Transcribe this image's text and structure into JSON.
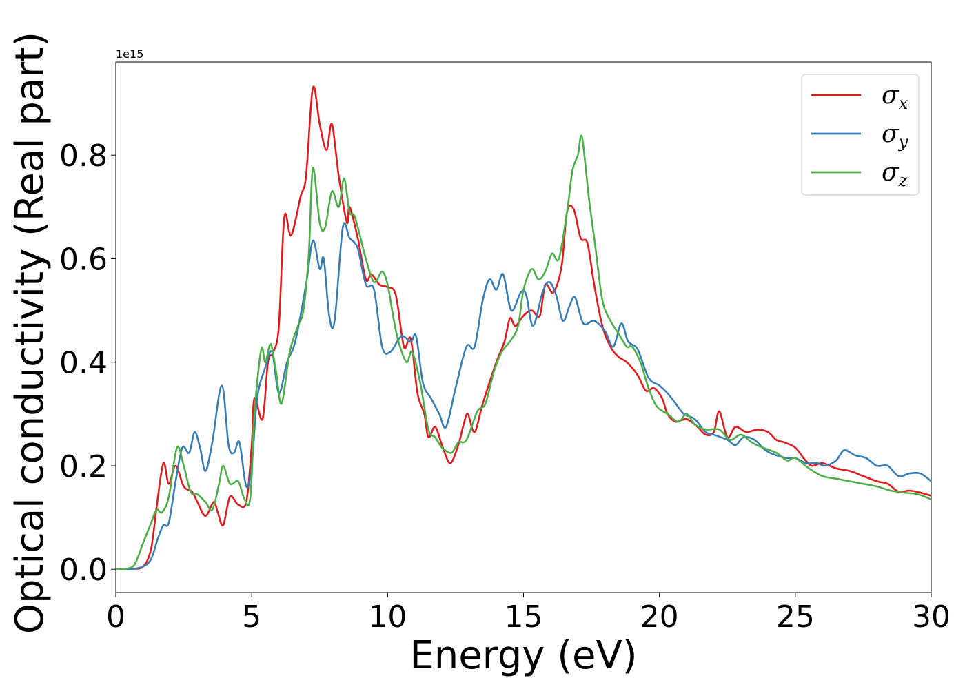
{
  "chart_data": {
    "type": "line",
    "title": "",
    "xlabel": "Energy (eV)",
    "ylabel": "Optical conductivity (Real part)",
    "y_offset_text": "1e15",
    "xlim": [
      0,
      30
    ],
    "ylim": [
      -0.045,
      0.98
    ],
    "x_ticks": [
      0,
      5,
      10,
      15,
      20,
      25,
      30
    ],
    "x_tick_labels": [
      "0",
      "5",
      "10",
      "15",
      "20",
      "25",
      "30"
    ],
    "y_ticks": [
      0.0,
      0.2,
      0.4,
      0.6,
      0.8
    ],
    "y_tick_labels": [
      "0.0",
      "0.2",
      "0.4",
      "0.6",
      "0.8"
    ],
    "grid": false,
    "legend_position": "top-right",
    "series": [
      {
        "name": "σx",
        "symbol": "σ",
        "subscript": "x",
        "color": "#e41a1c",
        "points": [
          [
            0,
            0
          ],
          [
            0.5,
            0.001
          ],
          [
            1.0,
            0.005
          ],
          [
            1.3,
            0.04
          ],
          [
            1.5,
            0.12
          ],
          [
            1.75,
            0.205
          ],
          [
            1.95,
            0.165
          ],
          [
            2.2,
            0.2
          ],
          [
            2.5,
            0.16
          ],
          [
            2.8,
            0.15
          ],
          [
            3.0,
            0.13
          ],
          [
            3.3,
            0.103
          ],
          [
            3.6,
            0.13
          ],
          [
            3.75,
            0.11
          ],
          [
            3.95,
            0.085
          ],
          [
            4.2,
            0.14
          ],
          [
            4.5,
            0.125
          ],
          [
            4.8,
            0.13
          ],
          [
            5.0,
            0.24
          ],
          [
            5.1,
            0.33
          ],
          [
            5.4,
            0.29
          ],
          [
            5.6,
            0.4
          ],
          [
            5.8,
            0.42
          ],
          [
            6.0,
            0.47
          ],
          [
            6.2,
            0.68
          ],
          [
            6.45,
            0.645
          ],
          [
            6.8,
            0.72
          ],
          [
            7.0,
            0.76
          ],
          [
            7.25,
            0.93
          ],
          [
            7.5,
            0.86
          ],
          [
            7.75,
            0.81
          ],
          [
            7.95,
            0.86
          ],
          [
            8.2,
            0.76
          ],
          [
            8.5,
            0.67
          ],
          [
            8.6,
            0.7
          ],
          [
            8.9,
            0.64
          ],
          [
            9.2,
            0.56
          ],
          [
            9.4,
            0.57
          ],
          [
            9.7,
            0.55
          ],
          [
            10.0,
            0.545
          ],
          [
            10.3,
            0.53
          ],
          [
            10.6,
            0.43
          ],
          [
            10.85,
            0.445
          ],
          [
            11.1,
            0.34
          ],
          [
            11.35,
            0.3
          ],
          [
            11.5,
            0.255
          ],
          [
            11.75,
            0.275
          ],
          [
            12.0,
            0.24
          ],
          [
            12.3,
            0.205
          ],
          [
            12.6,
            0.24
          ],
          [
            12.8,
            0.28
          ],
          [
            12.95,
            0.3
          ],
          [
            13.2,
            0.265
          ],
          [
            13.5,
            0.32
          ],
          [
            14.0,
            0.4
          ],
          [
            14.3,
            0.44
          ],
          [
            14.5,
            0.485
          ],
          [
            14.7,
            0.47
          ],
          [
            15.0,
            0.49
          ],
          [
            15.3,
            0.5
          ],
          [
            15.6,
            0.49
          ],
          [
            15.8,
            0.55
          ],
          [
            16.1,
            0.535
          ],
          [
            16.4,
            0.585
          ],
          [
            16.6,
            0.69
          ],
          [
            16.85,
            0.695
          ],
          [
            17.1,
            0.64
          ],
          [
            17.35,
            0.63
          ],
          [
            17.6,
            0.55
          ],
          [
            17.9,
            0.47
          ],
          [
            18.2,
            0.43
          ],
          [
            18.5,
            0.41
          ],
          [
            18.8,
            0.4
          ],
          [
            19.2,
            0.375
          ],
          [
            19.5,
            0.345
          ],
          [
            19.8,
            0.35
          ],
          [
            20.1,
            0.33
          ],
          [
            20.3,
            0.3
          ],
          [
            20.6,
            0.285
          ],
          [
            21.0,
            0.29
          ],
          [
            21.4,
            0.275
          ],
          [
            21.7,
            0.26
          ],
          [
            22.0,
            0.265
          ],
          [
            22.2,
            0.305
          ],
          [
            22.5,
            0.255
          ],
          [
            22.8,
            0.275
          ],
          [
            23.2,
            0.265
          ],
          [
            23.6,
            0.27
          ],
          [
            24.0,
            0.265
          ],
          [
            24.3,
            0.25
          ],
          [
            24.6,
            0.245
          ],
          [
            25.0,
            0.235
          ],
          [
            25.3,
            0.215
          ],
          [
            25.6,
            0.2
          ],
          [
            26.0,
            0.205
          ],
          [
            26.5,
            0.195
          ],
          [
            27.0,
            0.19
          ],
          [
            27.5,
            0.18
          ],
          [
            28.0,
            0.17
          ],
          [
            28.4,
            0.165
          ],
          [
            28.8,
            0.15
          ],
          [
            29.2,
            0.152
          ],
          [
            29.6,
            0.148
          ],
          [
            30.0,
            0.142
          ]
        ]
      },
      {
        "name": "σy",
        "symbol": "σ",
        "subscript": "y",
        "color": "#377eb8",
        "points": [
          [
            0,
            0
          ],
          [
            0.5,
            0.0
          ],
          [
            1.0,
            0.005
          ],
          [
            1.3,
            0.02
          ],
          [
            1.55,
            0.06
          ],
          [
            1.75,
            0.085
          ],
          [
            1.95,
            0.09
          ],
          [
            2.2,
            0.17
          ],
          [
            2.45,
            0.235
          ],
          [
            2.7,
            0.225
          ],
          [
            2.9,
            0.265
          ],
          [
            3.1,
            0.235
          ],
          [
            3.3,
            0.19
          ],
          [
            3.55,
            0.245
          ],
          [
            3.9,
            0.355
          ],
          [
            4.15,
            0.24
          ],
          [
            4.35,
            0.225
          ],
          [
            4.55,
            0.245
          ],
          [
            4.8,
            0.16
          ],
          [
            5.0,
            0.2
          ],
          [
            5.2,
            0.33
          ],
          [
            5.5,
            0.39
          ],
          [
            5.75,
            0.42
          ],
          [
            6.0,
            0.34
          ],
          [
            6.3,
            0.4
          ],
          [
            6.6,
            0.44
          ],
          [
            7.0,
            0.55
          ],
          [
            7.25,
            0.635
          ],
          [
            7.5,
            0.58
          ],
          [
            7.65,
            0.6
          ],
          [
            7.85,
            0.49
          ],
          [
            8.05,
            0.48
          ],
          [
            8.35,
            0.66
          ],
          [
            8.6,
            0.64
          ],
          [
            8.9,
            0.62
          ],
          [
            9.2,
            0.55
          ],
          [
            9.5,
            0.54
          ],
          [
            9.8,
            0.43
          ],
          [
            10.1,
            0.42
          ],
          [
            10.5,
            0.45
          ],
          [
            10.85,
            0.44
          ],
          [
            11.05,
            0.45
          ],
          [
            11.3,
            0.36
          ],
          [
            11.6,
            0.33
          ],
          [
            11.9,
            0.3
          ],
          [
            12.15,
            0.275
          ],
          [
            12.5,
            0.35
          ],
          [
            12.9,
            0.43
          ],
          [
            13.2,
            0.43
          ],
          [
            13.5,
            0.52
          ],
          [
            13.75,
            0.56
          ],
          [
            14.0,
            0.54
          ],
          [
            14.25,
            0.57
          ],
          [
            14.55,
            0.5
          ],
          [
            14.9,
            0.535
          ],
          [
            15.1,
            0.53
          ],
          [
            15.35,
            0.47
          ],
          [
            15.7,
            0.535
          ],
          [
            15.95,
            0.555
          ],
          [
            16.2,
            0.53
          ],
          [
            16.45,
            0.48
          ],
          [
            16.7,
            0.51
          ],
          [
            16.9,
            0.525
          ],
          [
            17.2,
            0.475
          ],
          [
            17.6,
            0.48
          ],
          [
            18.0,
            0.46
          ],
          [
            18.3,
            0.43
          ],
          [
            18.6,
            0.475
          ],
          [
            18.85,
            0.44
          ],
          [
            19.2,
            0.425
          ],
          [
            19.6,
            0.37
          ],
          [
            20.0,
            0.355
          ],
          [
            20.3,
            0.34
          ],
          [
            20.6,
            0.32
          ],
          [
            20.9,
            0.3
          ],
          [
            21.3,
            0.29
          ],
          [
            21.7,
            0.265
          ],
          [
            22.0,
            0.26
          ],
          [
            22.5,
            0.25
          ],
          [
            22.8,
            0.24
          ],
          [
            23.1,
            0.255
          ],
          [
            23.5,
            0.25
          ],
          [
            23.9,
            0.23
          ],
          [
            24.3,
            0.22
          ],
          [
            24.7,
            0.215
          ],
          [
            25.0,
            0.215
          ],
          [
            25.4,
            0.205
          ],
          [
            25.8,
            0.205
          ],
          [
            26.1,
            0.2
          ],
          [
            26.5,
            0.21
          ],
          [
            26.8,
            0.23
          ],
          [
            27.2,
            0.22
          ],
          [
            27.6,
            0.215
          ],
          [
            28.0,
            0.2
          ],
          [
            28.4,
            0.2
          ],
          [
            28.8,
            0.18
          ],
          [
            29.2,
            0.185
          ],
          [
            29.6,
            0.185
          ],
          [
            30.0,
            0.17
          ]
        ]
      },
      {
        "name": "σz",
        "symbol": "σ",
        "subscript": "z",
        "color": "#4daf4a",
        "points": [
          [
            0,
            0
          ],
          [
            0.4,
            0.001
          ],
          [
            0.7,
            0.01
          ],
          [
            1.0,
            0.05
          ],
          [
            1.3,
            0.09
          ],
          [
            1.5,
            0.115
          ],
          [
            1.7,
            0.11
          ],
          [
            1.95,
            0.14
          ],
          [
            2.25,
            0.235
          ],
          [
            2.5,
            0.2
          ],
          [
            2.75,
            0.15
          ],
          [
            3.0,
            0.145
          ],
          [
            3.3,
            0.13
          ],
          [
            3.55,
            0.115
          ],
          [
            3.8,
            0.165
          ],
          [
            3.95,
            0.2
          ],
          [
            4.2,
            0.165
          ],
          [
            4.5,
            0.17
          ],
          [
            4.7,
            0.14
          ],
          [
            4.9,
            0.125
          ],
          [
            5.0,
            0.18
          ],
          [
            5.1,
            0.3
          ],
          [
            5.35,
            0.425
          ],
          [
            5.5,
            0.4
          ],
          [
            5.7,
            0.435
          ],
          [
            5.9,
            0.38
          ],
          [
            6.1,
            0.32
          ],
          [
            6.4,
            0.42
          ],
          [
            6.7,
            0.47
          ],
          [
            6.9,
            0.5
          ],
          [
            7.1,
            0.61
          ],
          [
            7.25,
            0.775
          ],
          [
            7.5,
            0.67
          ],
          [
            7.7,
            0.66
          ],
          [
            7.95,
            0.73
          ],
          [
            8.2,
            0.7
          ],
          [
            8.4,
            0.755
          ],
          [
            8.6,
            0.69
          ],
          [
            8.8,
            0.68
          ],
          [
            9.2,
            0.6
          ],
          [
            9.5,
            0.555
          ],
          [
            9.8,
            0.575
          ],
          [
            10.0,
            0.55
          ],
          [
            10.2,
            0.49
          ],
          [
            10.4,
            0.44
          ],
          [
            10.7,
            0.4
          ],
          [
            10.9,
            0.42
          ],
          [
            11.2,
            0.36
          ],
          [
            11.5,
            0.27
          ],
          [
            11.75,
            0.255
          ],
          [
            12.0,
            0.235
          ],
          [
            12.35,
            0.225
          ],
          [
            12.6,
            0.245
          ],
          [
            12.9,
            0.25
          ],
          [
            13.3,
            0.305
          ],
          [
            13.6,
            0.32
          ],
          [
            13.9,
            0.38
          ],
          [
            14.2,
            0.42
          ],
          [
            14.5,
            0.44
          ],
          [
            14.8,
            0.47
          ],
          [
            15.0,
            0.54
          ],
          [
            15.3,
            0.58
          ],
          [
            15.55,
            0.56
          ],
          [
            15.8,
            0.575
          ],
          [
            16.05,
            0.61
          ],
          [
            16.3,
            0.6
          ],
          [
            16.6,
            0.69
          ],
          [
            16.8,
            0.77
          ],
          [
            17.0,
            0.8
          ],
          [
            17.15,
            0.835
          ],
          [
            17.4,
            0.72
          ],
          [
            17.65,
            0.62
          ],
          [
            17.9,
            0.52
          ],
          [
            18.2,
            0.48
          ],
          [
            18.5,
            0.455
          ],
          [
            18.8,
            0.43
          ],
          [
            19.0,
            0.43
          ],
          [
            19.3,
            0.4
          ],
          [
            19.6,
            0.35
          ],
          [
            19.9,
            0.315
          ],
          [
            20.3,
            0.3
          ],
          [
            20.7,
            0.285
          ],
          [
            21.0,
            0.3
          ],
          [
            21.3,
            0.28
          ],
          [
            21.7,
            0.27
          ],
          [
            22.2,
            0.27
          ],
          [
            22.6,
            0.25
          ],
          [
            23.0,
            0.26
          ],
          [
            23.4,
            0.245
          ],
          [
            23.8,
            0.235
          ],
          [
            24.3,
            0.225
          ],
          [
            24.7,
            0.21
          ],
          [
            25.0,
            0.215
          ],
          [
            25.5,
            0.195
          ],
          [
            26.0,
            0.18
          ],
          [
            26.5,
            0.175
          ],
          [
            27.0,
            0.17
          ],
          [
            27.5,
            0.165
          ],
          [
            28.0,
            0.16
          ],
          [
            28.5,
            0.152
          ],
          [
            29.0,
            0.148
          ],
          [
            29.5,
            0.145
          ],
          [
            30.0,
            0.135
          ]
        ]
      }
    ]
  }
}
